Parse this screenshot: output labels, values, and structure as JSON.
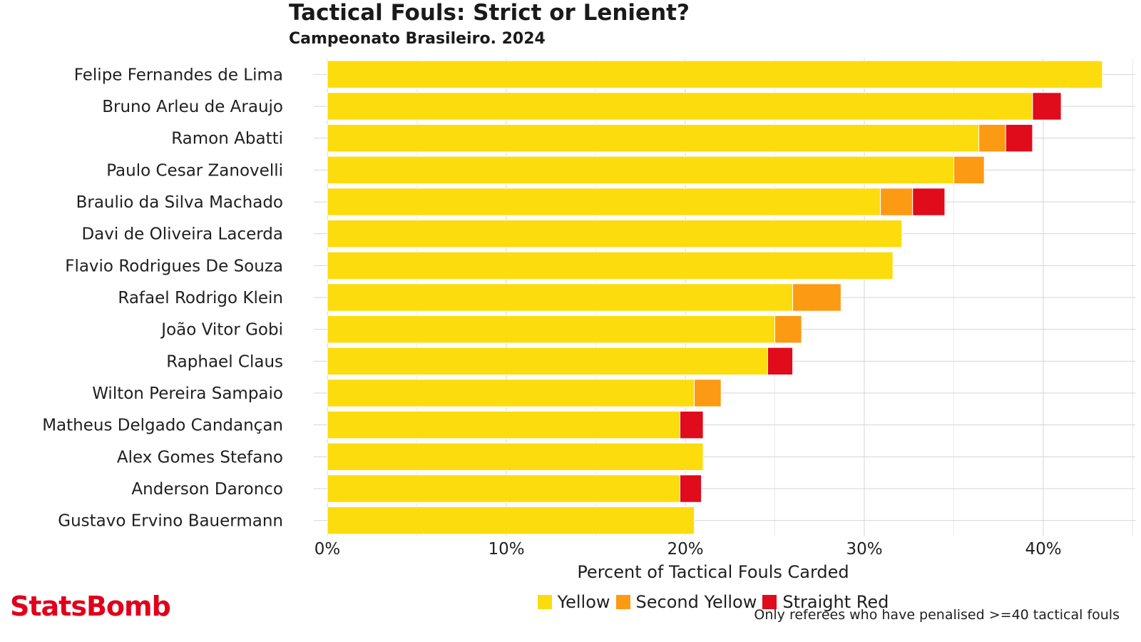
{
  "header": {
    "title": "Tactical Fouls: Strict or Lenient?",
    "subtitle": "Campeonato Brasileiro. 2024"
  },
  "footer": {
    "logo_text": "StatsBomb",
    "note": "Only referees who have penalised >=40 tactical fouls"
  },
  "chart_data": {
    "type": "bar",
    "orientation": "horizontal",
    "stacked": true,
    "categories": [
      "Felipe Fernandes de Lima",
      "Bruno Arleu de Araujo",
      "Ramon Abatti",
      "Paulo Cesar Zanovelli",
      "Braulio da Silva Machado",
      "Davi de Oliveira Lacerda",
      "Flavio Rodrigues De Souza",
      "Rafael Rodrigo Klein",
      "João Vitor Gobi",
      "Raphael Claus",
      "Wilton Pereira Sampaio",
      "Matheus Delgado Candançan",
      "Alex Gomes Stefano",
      "Anderson Daronco",
      "Gustavo Ervino Bauermann"
    ],
    "series": [
      {
        "name": "Yellow",
        "color": "#fcdc0c",
        "values": [
          43.3,
          39.4,
          36.4,
          35.0,
          30.9,
          32.1,
          31.6,
          26.0,
          25.0,
          24.6,
          20.5,
          19.7,
          21.0,
          19.7,
          20.5
        ]
      },
      {
        "name": "Second Yellow",
        "color": "#fc9a14",
        "values": [
          0,
          0,
          1.5,
          1.7,
          1.8,
          0,
          0,
          2.7,
          1.5,
          0,
          1.5,
          0,
          0,
          0,
          0
        ]
      },
      {
        "name": "Straight Red",
        "color": "#e00b1b",
        "values": [
          0,
          1.6,
          1.5,
          0,
          1.8,
          0,
          0,
          0,
          0,
          1.4,
          0,
          1.3,
          0,
          1.2,
          0
        ]
      }
    ],
    "xlabel": "Percent of Tactical Fouls Carded",
    "xlim": [
      0,
      45
    ],
    "xticks": [
      0,
      10,
      20,
      30,
      40
    ],
    "xtick_labels": [
      "0%",
      "10%",
      "20%",
      "30%",
      "40%"
    ],
    "grid": true,
    "legend_position": "bottom"
  }
}
